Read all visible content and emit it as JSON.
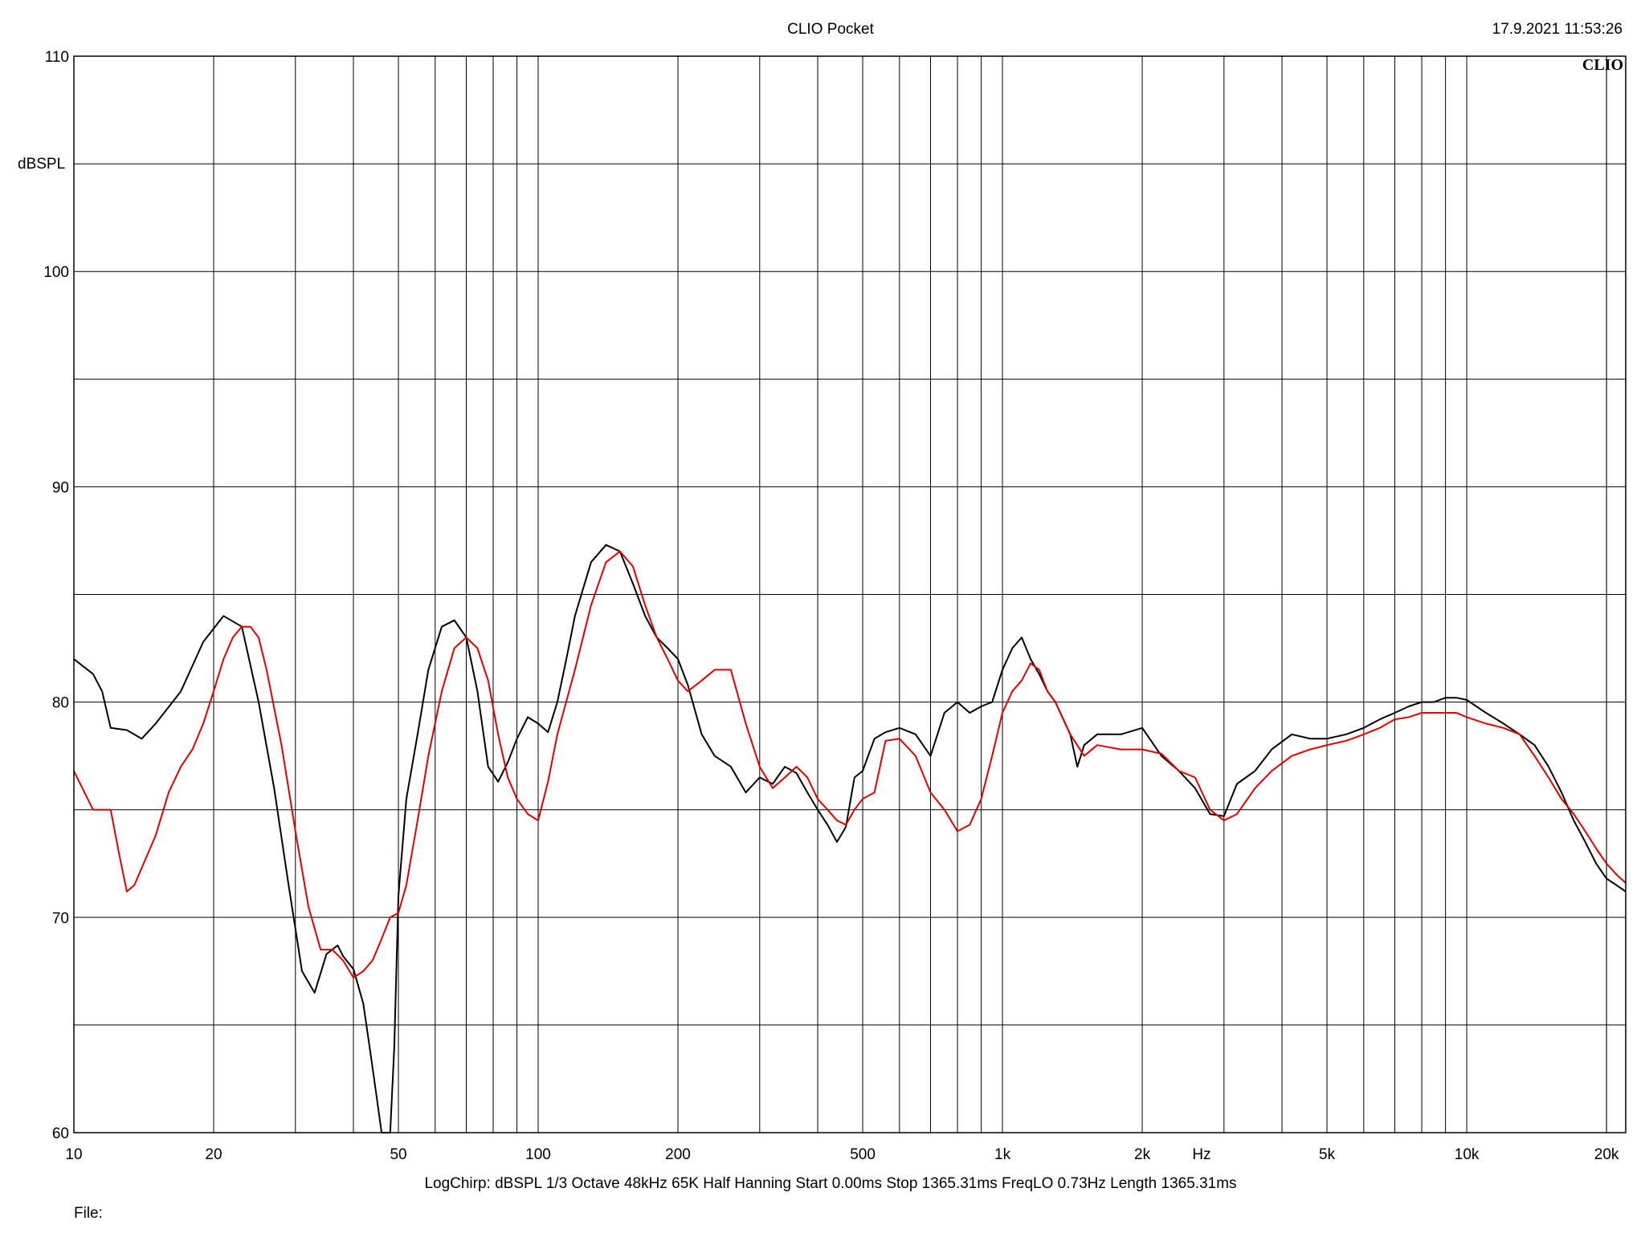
{
  "header": {
    "title": "CLIO Pocket",
    "timestamp": "17.9.2021 11:53:26",
    "brand": "CLIO"
  },
  "footer": {
    "params": "LogChirp:  dBSPL   1/3 Octave   48kHz   65K   Half Hanning   Start 0.00ms    Stop 1365.31ms    FreqLO 0.73Hz    Length 1365.31ms",
    "file_label": "File:"
  },
  "chart_data": {
    "type": "line",
    "title": "CLIO Pocket",
    "ylabel": "dBSPL",
    "xlabel": "Hz",
    "xscale": "log",
    "xlim": [
      10,
      22000
    ],
    "ylim": [
      60,
      110
    ],
    "grid": true,
    "colors": {
      "black": "#000000",
      "red": "#e00000",
      "grid": "#000000"
    },
    "x_ticks": [
      {
        "v": 10,
        "label": "10"
      },
      {
        "v": 20,
        "label": "20"
      },
      {
        "v": 50,
        "label": "50"
      },
      {
        "v": 100,
        "label": "100"
      },
      {
        "v": 200,
        "label": "200"
      },
      {
        "v": 500,
        "label": "500"
      },
      {
        "v": 1000,
        "label": "1k"
      },
      {
        "v": 2000,
        "label": "2k"
      },
      {
        "v": 5000,
        "label": "5k"
      },
      {
        "v": 10000,
        "label": "10k"
      },
      {
        "v": 20000,
        "label": "20k"
      }
    ],
    "y_ticks": [
      {
        "v": 110,
        "label": "110"
      },
      {
        "v": 100,
        "label": "100"
      },
      {
        "v": 90,
        "label": "90"
      },
      {
        "v": 80,
        "label": "80"
      },
      {
        "v": 70,
        "label": "70"
      },
      {
        "v": 60,
        "label": "60"
      }
    ],
    "series": [
      {
        "color": "#000000",
        "x": [
          10,
          11,
          11.5,
          12,
          13,
          14,
          15,
          17,
          19,
          21,
          23,
          25,
          27,
          29,
          31,
          33,
          35,
          37,
          38,
          40,
          42,
          44,
          46,
          48,
          49,
          50,
          52,
          55,
          58,
          62,
          66,
          70,
          74,
          78,
          82,
          86,
          90,
          95,
          100,
          105,
          110,
          115,
          120,
          130,
          140,
          150,
          160,
          170,
          180,
          190,
          200,
          210,
          225,
          240,
          260,
          280,
          300,
          320,
          340,
          360,
          380,
          400,
          420,
          440,
          460,
          480,
          500,
          530,
          560,
          600,
          650,
          700,
          750,
          800,
          850,
          900,
          950,
          1000,
          1050,
          1100,
          1150,
          1200,
          1250,
          1300,
          1400,
          1450,
          1500,
          1600,
          1800,
          2000,
          2200,
          2400,
          2600,
          2800,
          3000,
          3200,
          3500,
          3800,
          4200,
          4600,
          5000,
          5500,
          6000,
          6500,
          7000,
          7500,
          8000,
          8500,
          9000,
          9500,
          10000,
          11000,
          12000,
          13000,
          14000,
          15000,
          16000,
          17000,
          18000,
          19000,
          20000,
          21000,
          22000
        ],
        "y": [
          82.0,
          81.3,
          80.5,
          78.8,
          78.7,
          78.3,
          79.0,
          80.5,
          82.8,
          84.0,
          83.5,
          80.0,
          76.0,
          71.5,
          67.5,
          66.5,
          68.3,
          68.7,
          68.2,
          67.6,
          66.0,
          63.0,
          60.0,
          60.0,
          64.0,
          71.0,
          75.5,
          78.5,
          81.5,
          83.5,
          83.8,
          83.0,
          80.5,
          77.0,
          76.3,
          77.2,
          78.3,
          79.3,
          79.0,
          78.6,
          80.0,
          82.0,
          84.0,
          86.5,
          87.3,
          87.0,
          85.5,
          84.0,
          83.0,
          82.5,
          82.0,
          80.8,
          78.5,
          77.5,
          77.0,
          75.8,
          76.5,
          76.2,
          77.0,
          76.7,
          75.8,
          75.0,
          74.3,
          73.5,
          74.2,
          76.5,
          76.8,
          78.3,
          78.6,
          78.8,
          78.5,
          77.5,
          79.5,
          80.0,
          79.5,
          79.8,
          80.0,
          81.5,
          82.5,
          83.0,
          82.0,
          81.3,
          80.5,
          80.0,
          78.5,
          77.0,
          78.0,
          78.5,
          78.5,
          78.8,
          77.5,
          76.8,
          76.0,
          74.8,
          74.7,
          76.2,
          76.8,
          77.8,
          78.5,
          78.3,
          78.3,
          78.5,
          78.8,
          79.2,
          79.5,
          79.8,
          80.0,
          80.0,
          80.2,
          80.2,
          80.1,
          79.5,
          79.0,
          78.5,
          78.0,
          77.0,
          75.8,
          74.5,
          73.5,
          72.5,
          71.8,
          71.5,
          71.2
        ]
      },
      {
        "color": "#e00000",
        "x": [
          10,
          11,
          12,
          12.5,
          13,
          13.5,
          14,
          15,
          16,
          17,
          18,
          19,
          20,
          21,
          22,
          23,
          24,
          25,
          26,
          28,
          30,
          32,
          34,
          36,
          38,
          40,
          42,
          44,
          46,
          48,
          50,
          52,
          55,
          58,
          62,
          66,
          70,
          74,
          78,
          82,
          86,
          90,
          95,
          100,
          105,
          110,
          120,
          130,
          140,
          150,
          160,
          170,
          180,
          190,
          200,
          210,
          225,
          240,
          260,
          280,
          300,
          320,
          340,
          360,
          380,
          400,
          420,
          440,
          460,
          480,
          500,
          530,
          560,
          600,
          650,
          700,
          750,
          800,
          850,
          900,
          950,
          1000,
          1050,
          1100,
          1150,
          1200,
          1250,
          1300,
          1400,
          1500,
          1600,
          1800,
          2000,
          2200,
          2400,
          2600,
          2800,
          3000,
          3200,
          3500,
          3800,
          4200,
          4600,
          5000,
          5500,
          6000,
          6500,
          7000,
          7500,
          8000,
          8500,
          9000,
          9500,
          10000,
          11000,
          12000,
          13000,
          14000,
          15000,
          16000,
          17000,
          18000,
          19000,
          20000,
          21000,
          22000
        ],
        "y": [
          76.8,
          75.0,
          75.0,
          73.0,
          71.2,
          71.5,
          72.3,
          73.8,
          75.8,
          77.0,
          77.8,
          79.0,
          80.5,
          82.0,
          83.0,
          83.5,
          83.5,
          83.0,
          81.5,
          78.0,
          74.0,
          70.5,
          68.5,
          68.5,
          68.0,
          67.2,
          67.5,
          68.0,
          69.0,
          70.0,
          70.2,
          71.5,
          74.5,
          77.5,
          80.5,
          82.5,
          83.0,
          82.5,
          81.0,
          78.5,
          76.5,
          75.5,
          74.8,
          74.5,
          76.3,
          78.5,
          81.5,
          84.5,
          86.5,
          87.0,
          86.3,
          84.5,
          83.0,
          82.0,
          81.0,
          80.5,
          81.0,
          81.5,
          81.5,
          79.0,
          77.0,
          76.0,
          76.5,
          77.0,
          76.5,
          75.5,
          75.0,
          74.5,
          74.3,
          75.0,
          75.5,
          75.8,
          78.2,
          78.3,
          77.5,
          75.8,
          75.0,
          74.0,
          74.3,
          75.5,
          77.5,
          79.5,
          80.5,
          81.0,
          81.8,
          81.5,
          80.5,
          80.0,
          78.5,
          77.5,
          78.0,
          77.8,
          77.8,
          77.6,
          76.8,
          76.5,
          75.0,
          74.5,
          74.8,
          76.0,
          76.8,
          77.5,
          77.8,
          78.0,
          78.2,
          78.5,
          78.8,
          79.2,
          79.3,
          79.5,
          79.5,
          79.5,
          79.5,
          79.3,
          79.0,
          78.8,
          78.5,
          77.5,
          76.5,
          75.5,
          74.8,
          74.0,
          73.2,
          72.5,
          72.0,
          71.6
        ]
      }
    ]
  }
}
